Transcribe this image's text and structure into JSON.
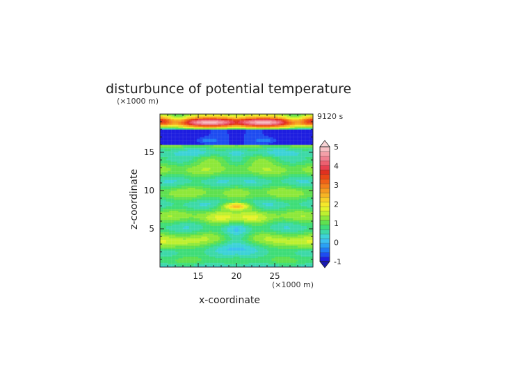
{
  "chart_data": {
    "type": "heatmap",
    "title": "disturbunce of potential temperature",
    "xlabel": "x-coordinate",
    "ylabel": "z-coordinate",
    "x_unit": "(×1000 m)",
    "y_unit": "(×1000 m)",
    "time_label": "9120 s",
    "xlim": [
      10,
      30
    ],
    "ylim": [
      0,
      20
    ],
    "x_ticks": [
      "15",
      "20",
      "25"
    ],
    "y_ticks": [
      "5",
      "10",
      "15"
    ],
    "colorbar": {
      "min": -1,
      "max": 5,
      "step": 0.25,
      "tick_labels": [
        "-1",
        "0",
        "1",
        "2",
        "3",
        "4",
        "5"
      ],
      "extend": "both",
      "colors": [
        "#1e1ee0",
        "#1e4cf0",
        "#1f7af5",
        "#2aa0f5",
        "#3cc0f0",
        "#3dd3d8",
        "#3dd9a8",
        "#3fdd78",
        "#5fe050",
        "#8ee83a",
        "#bdf030",
        "#e5f32c",
        "#f5e82a",
        "#f7cf28",
        "#f7b424",
        "#f59a20",
        "#f47e1c",
        "#f06018",
        "#ea4616",
        "#e03020",
        "#e84050",
        "#ec6070",
        "#f08090",
        "#f4a0a8",
        "#f7c0c4"
      ]
    }
  }
}
